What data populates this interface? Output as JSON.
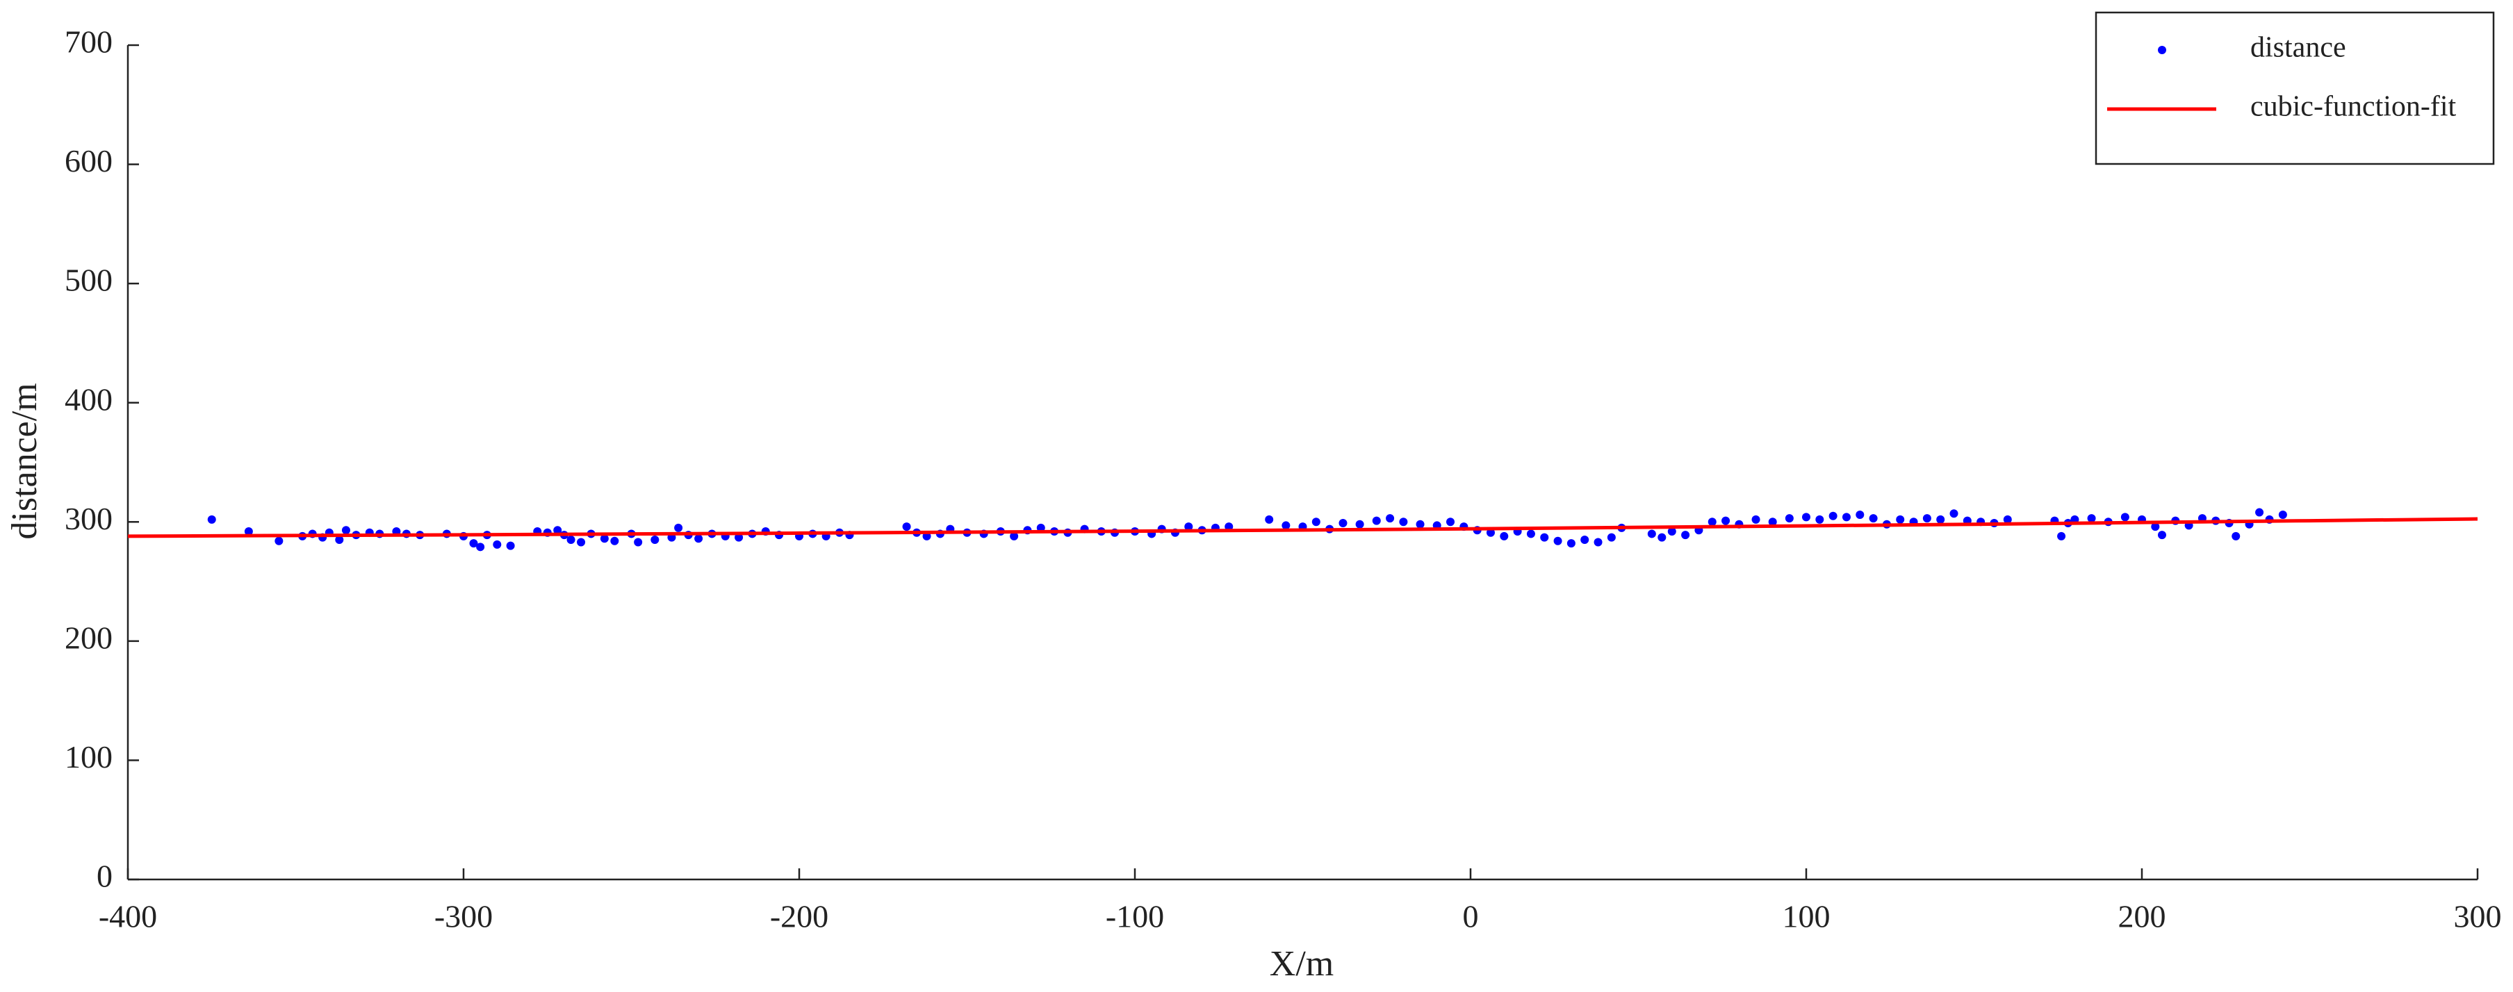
{
  "chart_data": {
    "type": "scatter",
    "xlabel": "X/m",
    "ylabel": "distance/m",
    "xlim": [
      -400,
      300
    ],
    "ylim": [
      0,
      700
    ],
    "xticks": [
      -400,
      -300,
      -200,
      -100,
      0,
      100,
      200,
      300
    ],
    "yticks": [
      0,
      100,
      200,
      300,
      400,
      500,
      600,
      700
    ],
    "legend": "upper right",
    "series": [
      {
        "name": "distance",
        "type": "scatter",
        "color": "#0000ff",
        "x": [
          -375,
          -364,
          -355,
          -348,
          -345,
          -342,
          -340,
          -337,
          -335,
          -332,
          -328,
          -325,
          -320,
          -317,
          -313,
          -305,
          -300,
          -297,
          -295,
          -293,
          -290,
          -286,
          -278,
          -275,
          -272,
          -270,
          -268,
          -265,
          -262,
          -258,
          -255,
          -250,
          -248,
          -243,
          -238,
          -236,
          -233,
          -230,
          -226,
          -222,
          -218,
          -214,
          -210,
          -206,
          -200,
          -196,
          -192,
          -188,
          -185,
          -168,
          -165,
          -162,
          -158,
          -155,
          -150,
          -145,
          -140,
          -136,
          -132,
          -128,
          -124,
          -120,
          -115,
          -110,
          -106,
          -100,
          -95,
          -92,
          -88,
          -84,
          -80,
          -76,
          -72,
          -60,
          -55,
          -50,
          -46,
          -42,
          -38,
          -33,
          -28,
          -24,
          -20,
          -15,
          -10,
          -6,
          -2,
          2,
          6,
          10,
          14,
          18,
          22,
          26,
          30,
          34,
          38,
          42,
          45,
          54,
          57,
          60,
          64,
          68,
          72,
          76,
          80,
          85,
          90,
          95,
          100,
          104,
          108,
          112,
          116,
          120,
          124,
          128,
          132,
          136,
          140,
          144,
          148,
          152,
          156,
          160,
          174,
          176,
          178,
          180,
          185,
          190,
          195,
          200,
          204,
          206,
          210,
          214,
          218,
          222,
          226,
          228,
          232,
          235,
          238,
          242
        ],
        "values": [
          302,
          292,
          284,
          288,
          290,
          287,
          291,
          285,
          293,
          289,
          291,
          290,
          292,
          290,
          289,
          290,
          288,
          282,
          279,
          289,
          281,
          280,
          292,
          291,
          293,
          289,
          285,
          283,
          290,
          286,
          284,
          290,
          283,
          285,
          287,
          295,
          289,
          286,
          290,
          288,
          287,
          290,
          292,
          289,
          288,
          290,
          288,
          291,
          289,
          296,
          291,
          288,
          290,
          294,
          291,
          290,
          292,
          288,
          293,
          295,
          292,
          291,
          294,
          292,
          291,
          292,
          290,
          294,
          291,
          296,
          293,
          295,
          296,
          302,
          297,
          296,
          300,
          294,
          299,
          298,
          301,
          303,
          300,
          298,
          297,
          300,
          296,
          293,
          291,
          288,
          292,
          290,
          287,
          284,
          282,
          285,
          283,
          287,
          295,
          290,
          287,
          292,
          289,
          293,
          300,
          301,
          298,
          302,
          300,
          303,
          304,
          302,
          305,
          304,
          306,
          303,
          298,
          302,
          300,
          303,
          302,
          307,
          301,
          300,
          299,
          302,
          301,
          288,
          299,
          302,
          303,
          300,
          304,
          302,
          296,
          289,
          301,
          297,
          303,
          301,
          299,
          288,
          298,
          308,
          302,
          306
        ]
      },
      {
        "name": "cubic-function-fit",
        "type": "line",
        "color": "#ff0000",
        "x": [
          -400,
          -350,
          -300,
          -250,
          -200,
          -150,
          -100,
          -50,
          0,
          50,
          100,
          150,
          200,
          250,
          300
        ],
        "values": [
          288,
          288.6,
          289.2,
          289.9,
          290.6,
          291.4,
          292.2,
          293.2,
          294.2,
          295.4,
          296.7,
          298,
          299.5,
          301,
          302.5
        ]
      }
    ]
  }
}
